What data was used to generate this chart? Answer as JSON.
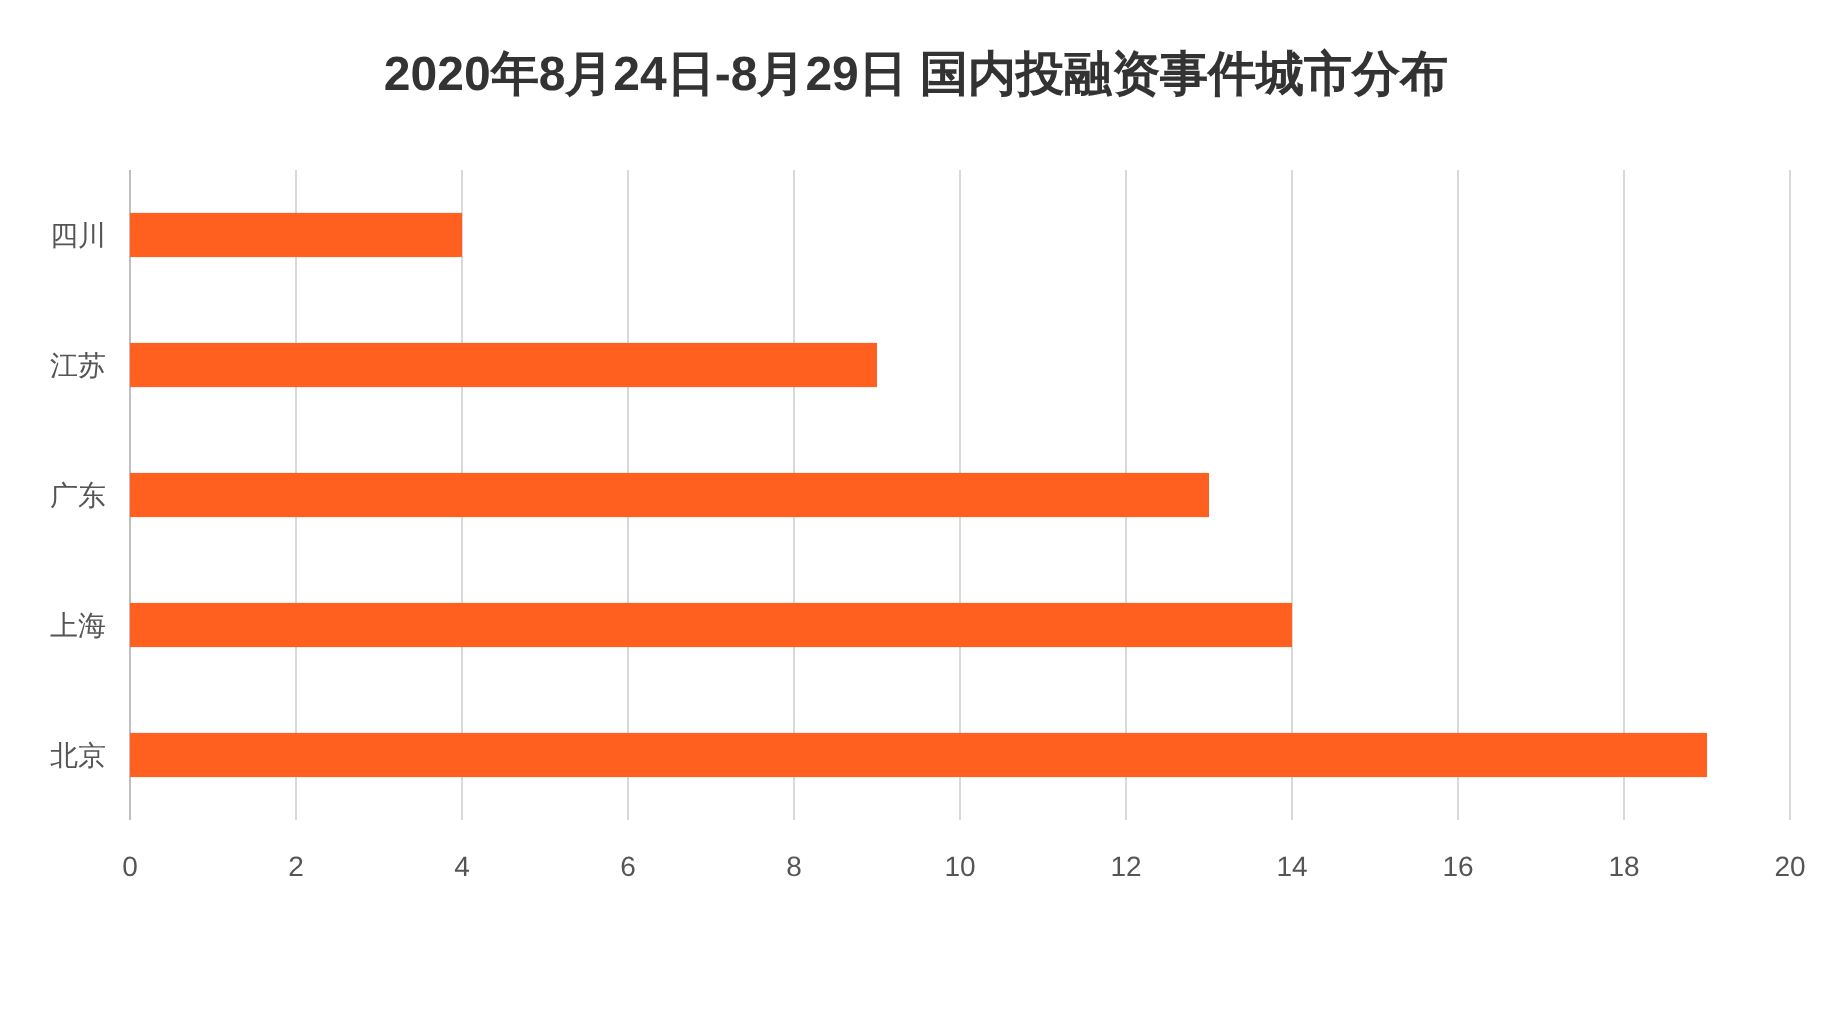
{
  "chart_data": {
    "type": "bar",
    "orientation": "horizontal",
    "title": "2020年8月24日-8月29日 国内投融资事件城市分布",
    "categories": [
      "四川",
      "江苏",
      "广东",
      "上海",
      "北京"
    ],
    "values": [
      4,
      9,
      13,
      14,
      19
    ],
    "color": "#ff5f1f",
    "xlim": [
      0,
      20
    ],
    "xticks": [
      0,
      2,
      4,
      6,
      8,
      10,
      12,
      14,
      16,
      18,
      20
    ],
    "grid": "x"
  }
}
